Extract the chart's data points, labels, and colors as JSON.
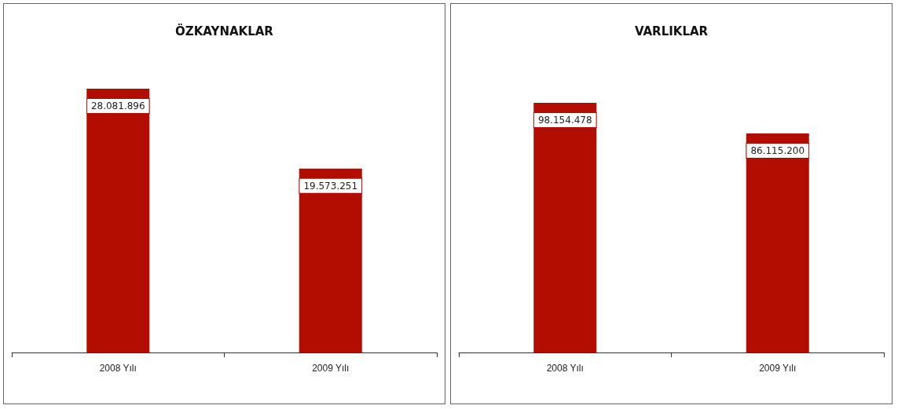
{
  "chart_data": [
    {
      "type": "bar",
      "title": "ÖZKAYNAKLAR",
      "categories": [
        "2008 Yılı",
        "2009 Yılı"
      ],
      "values": [
        28081896,
        19573251
      ],
      "value_labels": [
        "28.081.896",
        "19.573.251"
      ],
      "color": "#b30c00"
    },
    {
      "type": "bar",
      "title": "VARLIKLAR",
      "categories": [
        "2008 Yılı",
        "2009 Yılı"
      ],
      "values": [
        98154478,
        86115200
      ],
      "value_labels": [
        "98.154.478",
        "86.115.200"
      ],
      "color": "#b30c00"
    }
  ]
}
